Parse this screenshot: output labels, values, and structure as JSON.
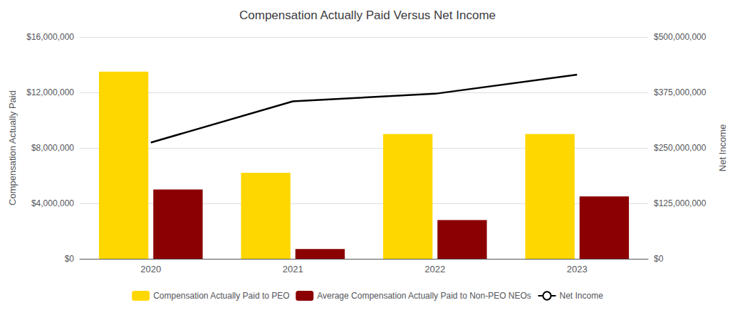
{
  "chart_data": {
    "type": "bar",
    "title": "Compensation Actually Paid Versus Net Income",
    "categories": [
      "2020",
      "2021",
      "2022",
      "2023"
    ],
    "series": [
      {
        "name": "Compensation Actually Paid to PEO",
        "type": "bar",
        "color": "#FFD700",
        "values": [
          13500000,
          6200000,
          9000000,
          9000000
        ]
      },
      {
        "name": "Average Compensation Actually Paid to Non-PEO NEOs",
        "type": "bar",
        "color": "#8B0000",
        "values": [
          5000000,
          700000,
          2800000,
          4500000
        ]
      },
      {
        "name": "Net Income",
        "type": "line",
        "color": "#000000",
        "axis": "y2",
        "values": [
          262000000,
          355000000,
          372000000,
          415000000
        ]
      }
    ],
    "ylabel": "Compensation Actually Paid",
    "y2label": "Net Income",
    "ylim": [
      0,
      16000000
    ],
    "yticks": [
      {
        "value": 0,
        "label": "$0"
      },
      {
        "value": 4000000,
        "label": "$4,000,000"
      },
      {
        "value": 8000000,
        "label": "$8,000,000"
      },
      {
        "value": 12000000,
        "label": "$12,000,000"
      },
      {
        "value": 16000000,
        "label": "$16,000,000"
      }
    ],
    "y2lim": [
      0,
      500000000
    ],
    "y2ticks": [
      {
        "value": 0,
        "label": "$0"
      },
      {
        "value": 125000000,
        "label": "$125,000,000"
      },
      {
        "value": 250000000,
        "label": "$250,000,000"
      },
      {
        "value": 375000000,
        "label": "$375,000,000"
      },
      {
        "value": 500000000,
        "label": "$500,000,000"
      }
    ],
    "grid": true,
    "legend": "bottom"
  }
}
